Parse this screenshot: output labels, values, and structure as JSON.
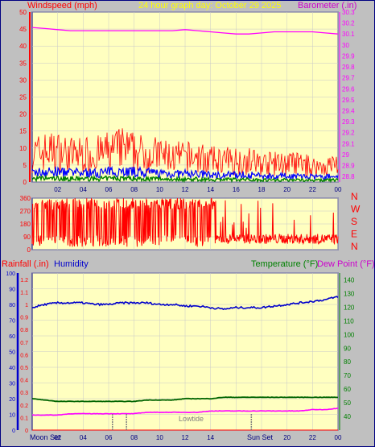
{
  "header": {
    "wind_title": "Windspeed (mph)",
    "date_title": "24 hour graph day:  October 29 2025",
    "baro_title": "Barometer (.in)"
  },
  "colors": {
    "frame": "#000080",
    "plot_bg": "#ffffc0",
    "grid": "#c8c8c8",
    "wind": "#ff0000",
    "gust": "#0000ff",
    "wind_avg": "#008000",
    "baro": "#ff00ff",
    "humidity": "#0000cc",
    "temperature": "#006400",
    "dewpoint": "#ff00ff",
    "axis_label_red": "#ff0000",
    "axis_label_magenta": "#cc00cc",
    "axis_label_green": "#008000",
    "title_yellow": "#ffff00"
  },
  "wind_panel": {
    "y_ticks": [
      "50",
      "45",
      "40",
      "35",
      "30",
      "25",
      "20",
      "15",
      "10",
      "5",
      "0"
    ],
    "baro_ticks": [
      "30.3",
      "30.2",
      "30.1",
      "30",
      "29.9",
      "29.8",
      "29.7",
      "29.6",
      "29.5",
      "29.4",
      "29.3",
      "29.2",
      "29.1",
      "29",
      "28.9",
      "28.8"
    ]
  },
  "direction_panel": {
    "y_ticks": [
      "360",
      "270",
      "180",
      "90",
      "0"
    ],
    "compass": [
      "N",
      "W",
      "S",
      "E",
      "N"
    ]
  },
  "bottom_panel": {
    "rain_label": "Rainfall (.in)",
    "humidity_label": "Humidity",
    "temp_label": "Temperature (°F)",
    "dew_label": "Dew Point (°F)",
    "humidity_ticks": [
      "100",
      "90",
      "80",
      "70",
      "60",
      "50",
      "40",
      "30",
      "20",
      "10",
      "0"
    ],
    "rain_ticks": [
      "1.2",
      "1.1",
      "1",
      "0.9",
      "0.8",
      "0.7",
      "0.6",
      "0.5",
      "0.4",
      "0.3",
      "0.2",
      "0.1",
      "0"
    ],
    "temp_ticks": [
      "140",
      "130",
      "120",
      "110",
      "100",
      "90",
      "80",
      "70",
      "60",
      "50",
      "40"
    ],
    "moon_set": "Moon Set",
    "sun_set": "Sun Set",
    "sun_rise_marker": "16",
    "low_tide": "Lowtide"
  },
  "x_ticks": [
    "02",
    "04",
    "06",
    "08",
    "10",
    "12",
    "14",
    "16",
    "18",
    "20",
    "22",
    "00"
  ],
  "chart_data": [
    {
      "type": "line",
      "title": "Windspeed (mph)",
      "ylim": [
        0,
        50
      ],
      "x_hours": [
        0,
        1,
        2,
        3,
        4,
        5,
        6,
        7,
        8,
        9,
        10,
        11,
        12,
        13,
        14,
        15,
        16,
        17,
        18,
        19,
        20,
        21,
        22,
        23,
        24
      ],
      "series": [
        {
          "name": "Windspeed (mph)",
          "values": [
            9,
            10,
            10,
            9,
            9,
            9,
            10,
            11,
            10,
            9,
            9,
            8,
            8,
            8,
            7,
            7,
            7,
            7,
            6,
            6,
            6,
            6,
            5,
            5,
            6
          ]
        },
        {
          "name": "Barometer (.in)",
          "values": [
            30.16,
            30.15,
            30.14,
            30.13,
            30.13,
            30.13,
            30.13,
            30.13,
            30.13,
            30.13,
            30.13,
            30.13,
            30.14,
            30.13,
            30.12,
            30.11,
            30.1,
            30.1,
            30.11,
            30.12,
            30.12,
            30.12,
            30.12,
            30.11,
            30.1
          ]
        }
      ]
    },
    {
      "type": "line",
      "title": "Wind direction",
      "ylim": [
        0,
        360
      ],
      "x_hours": [
        0,
        24
      ]
    },
    {
      "type": "line",
      "title": "Humidity / Temperature / Dew Point / Rainfall",
      "x_hours": [
        0,
        1,
        2,
        3,
        4,
        5,
        6,
        7,
        8,
        9,
        10,
        11,
        12,
        13,
        14,
        15,
        16,
        17,
        18,
        19,
        20,
        21,
        22,
        23,
        24
      ],
      "humidity_ylim": [
        0,
        100
      ],
      "temperature_ylim": [
        40,
        140
      ],
      "rain_ylim": [
        0,
        1.2
      ],
      "series": [
        {
          "name": "Humidity",
          "values": [
            78,
            80,
            81,
            81,
            81,
            80,
            80,
            81,
            81,
            81,
            80,
            80,
            79,
            79,
            78,
            77,
            78,
            78,
            78,
            79,
            80,
            81,
            82,
            83,
            85
          ]
        },
        {
          "name": "Temperature (°F)",
          "values": [
            53,
            52,
            51,
            51,
            51,
            51,
            51,
            51,
            51,
            52,
            52,
            52,
            53,
            53,
            53,
            54,
            54,
            54,
            54,
            54,
            54,
            54,
            54,
            54,
            54
          ]
        },
        {
          "name": "Dew Point (°F)",
          "values": [
            41,
            41,
            41,
            42,
            42,
            42,
            42,
            42,
            42,
            43,
            43,
            43,
            43,
            43,
            44,
            44,
            44,
            44,
            44,
            44,
            44,
            44,
            45,
            45,
            46
          ]
        },
        {
          "name": "Rainfall (.in)",
          "values": [
            0,
            0,
            0,
            0,
            0,
            0,
            0,
            0,
            0,
            0,
            0,
            0,
            0,
            0,
            0,
            0,
            0,
            0,
            0,
            0,
            0,
            0,
            0,
            0,
            0
          ]
        }
      ]
    }
  ]
}
